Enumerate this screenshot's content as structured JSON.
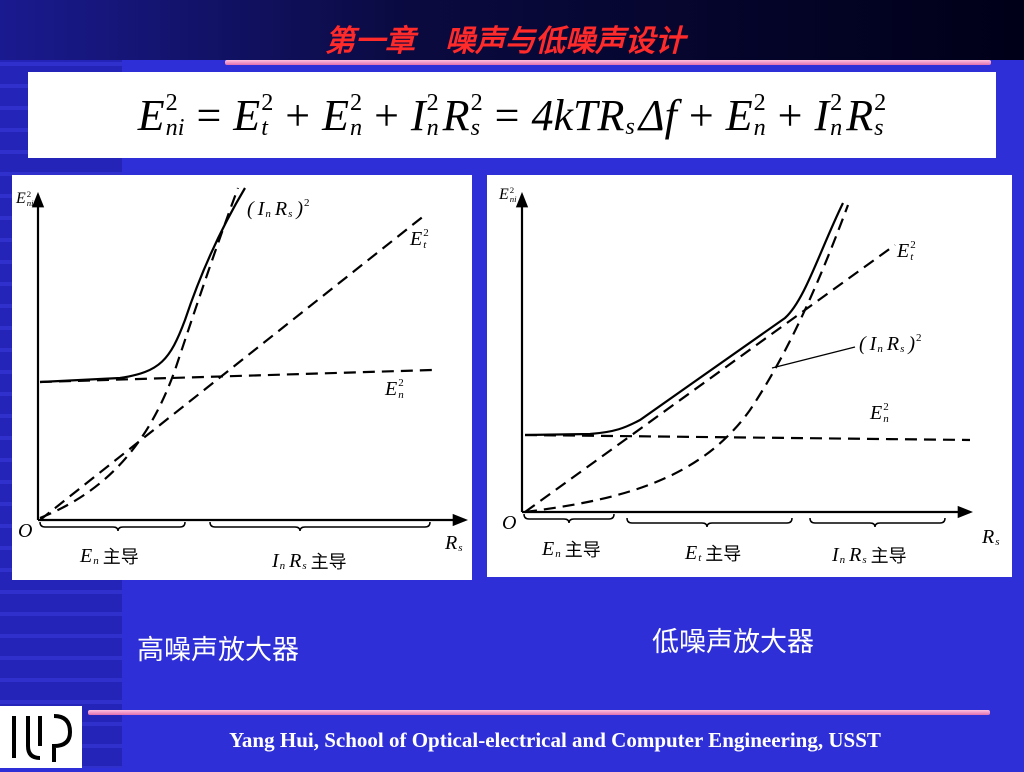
{
  "header": {
    "title": "第一章　噪声与低噪声设计"
  },
  "equation": [
    {
      "base": "E",
      "sub": "ni",
      "sup": "2"
    },
    {
      "base": "="
    },
    {
      "base": "E",
      "sub": "t",
      "sup": "2"
    },
    {
      "base": "+"
    },
    {
      "base": "E",
      "sub": "n",
      "sup": "2"
    },
    {
      "base": "+"
    },
    {
      "base": "I",
      "sub": "n",
      "sup": "2"
    },
    {
      "base": "R",
      "sub": "s",
      "sup": "2"
    },
    {
      "base": "="
    },
    {
      "base": "4kTR",
      "sub": "s"
    },
    {
      "base": "Δf"
    },
    {
      "base": "+"
    },
    {
      "base": "E",
      "sub": "n",
      "sup": "2"
    },
    {
      "base": "+"
    },
    {
      "base": "I",
      "sub": "n",
      "sup": "2"
    },
    {
      "base": "R",
      "sub": "s",
      "sup": "2"
    }
  ],
  "panels": [
    {
      "y_axis": [
        {
          "base": "E",
          "sub": "ni",
          "sup": "2"
        }
      ],
      "origin": [
        {
          "base": "O"
        }
      ],
      "x_axis": [
        {
          "base": "R",
          "sub": "s"
        }
      ],
      "in_rs": [
        {
          "base": "("
        },
        {
          "base": "I",
          "sub": "n"
        },
        {
          "base": "R",
          "sub": "s"
        },
        {
          "base": ")",
          "sup": "2"
        }
      ],
      "et": [
        {
          "base": "E",
          "sub": "t",
          "sup": "2"
        }
      ],
      "en": [
        {
          "base": "E",
          "sub": "n",
          "sup": "2"
        }
      ],
      "regions": [
        [
          {
            "base": "E",
            "sub": "n"
          },
          {
            "base": "主导"
          }
        ],
        [
          {
            "base": "I",
            "sub": "n"
          },
          {
            "base": "R",
            "sub": "s"
          },
          {
            "base": "主导"
          }
        ]
      ],
      "caption": "高噪声放大器"
    },
    {
      "y_axis": [
        {
          "base": "E",
          "sub": "ni",
          "sup": "2"
        }
      ],
      "origin": [
        {
          "base": "O"
        }
      ],
      "x_axis": [
        {
          "base": "R",
          "sub": "s"
        }
      ],
      "in_rs": [
        {
          "base": "("
        },
        {
          "base": "I",
          "sub": "n"
        },
        {
          "base": "R",
          "sub": "s"
        },
        {
          "base": ")",
          "sup": "2"
        }
      ],
      "et": [
        {
          "base": "E",
          "sub": "t",
          "sup": "2"
        }
      ],
      "en": [
        {
          "base": "E",
          "sub": "n",
          "sup": "2"
        }
      ],
      "regions": [
        [
          {
            "base": "E",
            "sub": "n"
          },
          {
            "base": "主导"
          }
        ],
        [
          {
            "base": "E",
            "sub": "t"
          },
          {
            "base": "主导"
          }
        ],
        [
          {
            "base": "I",
            "sub": "n"
          },
          {
            "base": "R",
            "sub": "s"
          },
          {
            "base": "主导"
          }
        ]
      ],
      "caption": "低噪声放大器"
    }
  ],
  "footer": {
    "text": "Yang Hui, School of Optical-electrical and Computer Engineering, USST"
  }
}
